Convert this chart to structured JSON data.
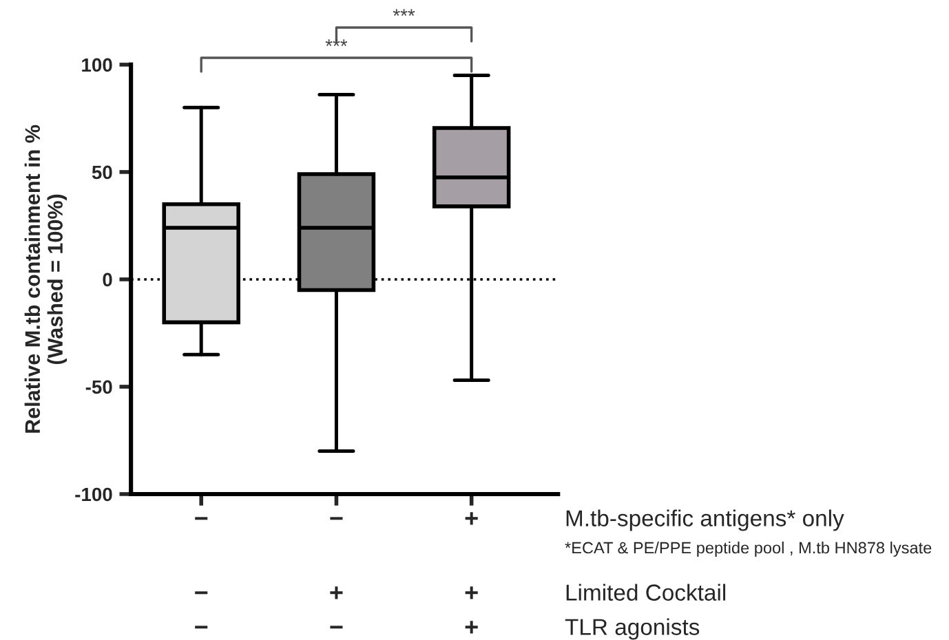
{
  "chart_data": {
    "type": "box",
    "ylabel": "Relative M.tb containment in %\n(Washed = 100%)",
    "categories": [
      null,
      null,
      null
    ],
    "boxes": [
      {
        "low": -35,
        "q1": -20,
        "median": 24,
        "q3": 35,
        "high": 80
      },
      {
        "low": -80,
        "q1": -5,
        "median": 24,
        "q3": 49,
        "high": 86
      },
      {
        "low": -47,
        "q1": 34,
        "median": 47.5,
        "q3": 70.5,
        "high": 95
      }
    ],
    "colors": [
      "#d4d4d4",
      "#808080",
      "#a59fa5"
    ],
    "ylim": [
      -100,
      100
    ],
    "yticks": [
      -100,
      -50,
      0,
      50,
      100
    ],
    "ref_lines": [
      {
        "axis": "y",
        "value": 0,
        "color": "#000000",
        "line_style": "dotted"
      }
    ],
    "grid": false,
    "tick_labels": "y",
    "annotations": [
      "−",
      "−",
      "+",
      "M.tb-specific antigens* only",
      "*ECAT & PE/PPE peptide pool , M.tb HN878 lysate",
      "−",
      "+",
      "+",
      "Limited Cocktail",
      "−",
      "−",
      "+",
      "TLR agonists",
      "***",
      "***"
    ]
  }
}
